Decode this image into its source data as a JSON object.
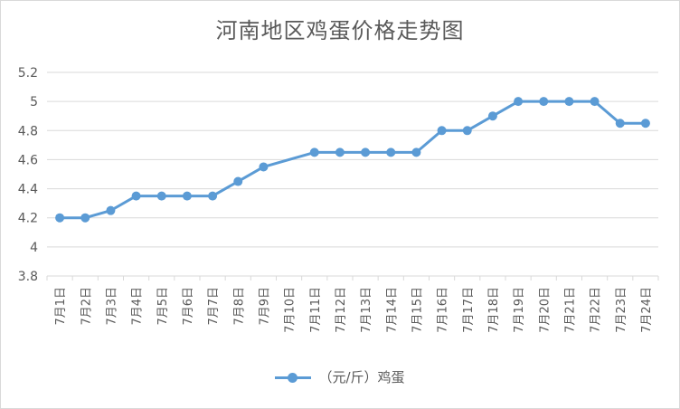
{
  "chart_data": {
    "type": "line",
    "title": "河南地区鸡蛋价格走势图",
    "xlabel": "",
    "ylabel": "",
    "categories": [
      "7月1日",
      "7月2日",
      "7月3日",
      "7月4日",
      "7月5日",
      "7月6日",
      "7月7日",
      "7月8日",
      "7月9日",
      "7月10日",
      "7月11日",
      "7月12日",
      "7月13日",
      "7月14日",
      "7月15日",
      "7月16日",
      "7月17日",
      "7月18日",
      "7月19日",
      "7月20日",
      "7月21日",
      "7月22日",
      "7月23日",
      "7月24日"
    ],
    "series": [
      {
        "name": "（元/斤）鸡蛋",
        "values": [
          4.2,
          4.2,
          4.25,
          4.35,
          4.35,
          4.35,
          4.35,
          4.45,
          4.55,
          null,
          4.65,
          4.65,
          4.65,
          4.65,
          4.65,
          4.8,
          4.8,
          4.9,
          5.0,
          5.0,
          5.0,
          5.0,
          4.85,
          4.85
        ]
      }
    ],
    "ylim": [
      3.8,
      5.2
    ],
    "yticks": [
      3.8,
      4,
      4.2,
      4.4,
      4.6,
      4.8,
      5,
      5.2
    ],
    "ytick_labels": [
      "3.8",
      "4",
      "4.2",
      "4.4",
      "4.6",
      "4.8",
      "5",
      "5.2"
    ],
    "grid": true,
    "legend_position": "bottom",
    "colors": {
      "series": "#5b9bd5",
      "grid": "#d9d9d9",
      "text": "#595959"
    }
  }
}
